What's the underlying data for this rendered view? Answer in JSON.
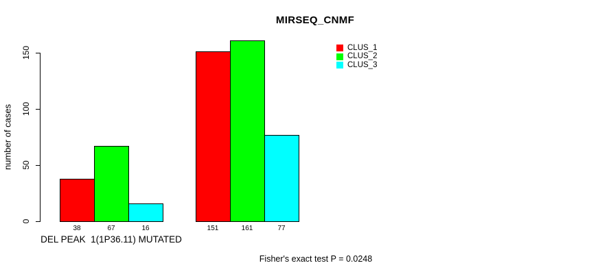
{
  "chart_data": {
    "type": "bar",
    "title": "MIRSEQ_CNMF",
    "ylabel": "number of cases",
    "xlabel": "",
    "ylim": [
      0,
      150
    ],
    "yticks": [
      0,
      50,
      100,
      150
    ],
    "grid": false,
    "legend_position": "top-right",
    "bar_border_color": "#000000",
    "categories": [
      "DEL PEAK  1(1P36.11) MUTATED",
      ""
    ],
    "series": [
      {
        "name": "CLUS_1",
        "color": "#ff0000",
        "values": [
          38,
          151
        ]
      },
      {
        "name": "CLUS_2",
        "color": "#00ff00",
        "values": [
          67,
          161
        ]
      },
      {
        "name": "CLUS_3",
        "color": "#00ffff",
        "values": [
          16,
          77
        ]
      }
    ],
    "annotation": "Fisher's exact test P = 0.0248"
  }
}
